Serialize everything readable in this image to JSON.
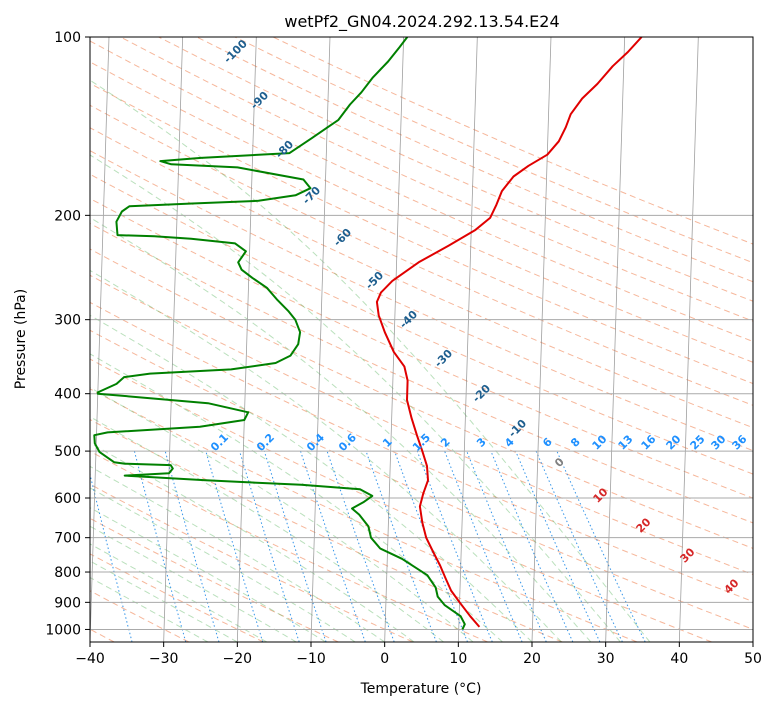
{
  "chart_data": {
    "type": "line",
    "title": "wetPf2_GN04.2024.292.13.54.E24",
    "xlabel": "Temperature (°C)",
    "ylabel": "Pressure (hPa)",
    "xlim": [
      -40,
      50
    ],
    "ylim": [
      1050,
      100
    ],
    "y_scale": "log",
    "x_ticks": [
      -40,
      -30,
      -20,
      -10,
      0,
      10,
      20,
      30,
      40,
      50
    ],
    "x_tick_labels": [
      "−40",
      "−30",
      "−20",
      "−10",
      "0",
      "10",
      "20",
      "30",
      "40",
      "50"
    ],
    "y_ticks": [
      100,
      200,
      300,
      400,
      500,
      600,
      700,
      800,
      900,
      1000
    ],
    "y_tick_labels": [
      "100",
      "200",
      "300",
      "400",
      "500",
      "600",
      "700",
      "800",
      "900",
      "1000"
    ],
    "grid": true,
    "series": [
      {
        "kind": "temperature",
        "color": "#e00000",
        "points": [
          [
            12.8,
            990
          ],
          [
            11.5,
            950
          ],
          [
            10.0,
            900
          ],
          [
            8.8,
            860
          ],
          [
            8.0,
            820
          ],
          [
            7.2,
            780
          ],
          [
            6.2,
            740
          ],
          [
            5.2,
            700
          ],
          [
            4.6,
            660
          ],
          [
            4.2,
            620
          ],
          [
            4.6,
            590
          ],
          [
            5.2,
            560
          ],
          [
            5.0,
            530
          ],
          [
            4.3,
            500
          ],
          [
            3.5,
            470
          ],
          [
            2.7,
            440
          ],
          [
            2.0,
            410
          ],
          [
            2.0,
            380
          ],
          [
            1.5,
            360
          ],
          [
            0.0,
            340
          ],
          [
            -1.3,
            315
          ],
          [
            -2.2,
            295
          ],
          [
            -2.5,
            280
          ],
          [
            -2.0,
            270
          ],
          [
            -0.5,
            258
          ],
          [
            3.0,
            240
          ],
          [
            7.0,
            225
          ],
          [
            10.5,
            212
          ],
          [
            12.5,
            202
          ],
          [
            13.3,
            192
          ],
          [
            14.0,
            182
          ],
          [
            15.5,
            172
          ],
          [
            17.5,
            165
          ],
          [
            20.0,
            158
          ],
          [
            21.5,
            150
          ],
          [
            22.4,
            142
          ],
          [
            23.0,
            135
          ],
          [
            24.5,
            127
          ],
          [
            26.5,
            120
          ],
          [
            28.5,
            112
          ],
          [
            30.5,
            106
          ],
          [
            32.3,
            100
          ]
        ]
      },
      {
        "kind": "dewpoint",
        "color": "#008000",
        "points": [
          [
            10.5,
            1000
          ],
          [
            10.8,
            980
          ],
          [
            10.2,
            950
          ],
          [
            8.0,
            910
          ],
          [
            7.0,
            880
          ],
          [
            6.7,
            850
          ],
          [
            5.5,
            810
          ],
          [
            2.0,
            760
          ],
          [
            -1.0,
            730
          ],
          [
            -2.3,
            700
          ],
          [
            -2.7,
            670
          ],
          [
            -4.0,
            640
          ],
          [
            -5.0,
            625
          ],
          [
            -3.5,
            610
          ],
          [
            -2.3,
            595
          ],
          [
            -4.0,
            580
          ],
          [
            -12.0,
            570
          ],
          [
            -25.0,
            560
          ],
          [
            -36.0,
            550
          ],
          [
            -30.0,
            545
          ],
          [
            -29.5,
            535
          ],
          [
            -29.8,
            528
          ],
          [
            -36.0,
            525
          ],
          [
            -37.5,
            522
          ],
          [
            -39.5,
            502
          ],
          [
            -40.2,
            485
          ],
          [
            -40.3,
            470
          ],
          [
            -38.5,
            465
          ],
          [
            -26.0,
            455
          ],
          [
            -20.0,
            443
          ],
          [
            -19.5,
            430
          ],
          [
            -25.0,
            415
          ],
          [
            -40.0,
            400
          ],
          [
            -40.0,
            398
          ],
          [
            -37.5,
            385
          ],
          [
            -36.5,
            375
          ],
          [
            -33.0,
            370
          ],
          [
            -22.0,
            364
          ],
          [
            -16.0,
            355
          ],
          [
            -14.0,
            345
          ],
          [
            -13.0,
            330
          ],
          [
            -12.8,
            315
          ],
          [
            -13.5,
            300
          ],
          [
            -14.5,
            290
          ],
          [
            -16.0,
            278
          ],
          [
            -17.5,
            265
          ],
          [
            -19.5,
            255
          ],
          [
            -21.0,
            247
          ],
          [
            -21.5,
            240
          ],
          [
            -20.5,
            230
          ],
          [
            -22.0,
            223
          ],
          [
            -28.0,
            219
          ],
          [
            -33.0,
            217
          ],
          [
            -38.0,
            216
          ],
          [
            -38.2,
            205
          ],
          [
            -37.5,
            197
          ],
          [
            -36.5,
            193
          ],
          [
            -28.0,
            191
          ],
          [
            -19.0,
            189
          ],
          [
            -14.0,
            185
          ],
          [
            -12.0,
            180
          ],
          [
            -13.0,
            174
          ],
          [
            -22.0,
            166
          ],
          [
            -31.0,
            164
          ],
          [
            -32.5,
            162
          ],
          [
            -27.0,
            160
          ],
          [
            -15.0,
            157
          ],
          [
            -12.0,
            148
          ],
          [
            -8.5,
            138
          ],
          [
            -7.0,
            130
          ],
          [
            -5.5,
            124
          ],
          [
            -4.0,
            117
          ],
          [
            -2.0,
            110
          ],
          [
            -0.5,
            104
          ],
          [
            0.5,
            100
          ]
        ]
      }
    ],
    "dry_adiabat_labels": [
      "-100",
      "-90",
      "-80",
      "-70",
      "-60",
      "-50",
      "-40",
      "-30",
      "-20",
      "-10"
    ],
    "dry_adiabat_label_color": "#1f5f8f",
    "mixing_ratio_labels": [
      "0.1",
      "0.2",
      "0.4",
      "0.6",
      "1",
      "1.5",
      "2",
      "3",
      "4",
      "6",
      "8",
      "10",
      "13",
      "16",
      "20",
      "25",
      "30",
      "36"
    ],
    "mixing_ratio_label_color": "#1e90ff",
    "moist_adiabat_labels": [
      "0",
      "10",
      "20",
      "30",
      "40"
    ],
    "moist_adiabat_label_colors": [
      "#808080",
      "#d62728",
      "#d62728",
      "#d62728",
      "#d62728"
    ]
  }
}
